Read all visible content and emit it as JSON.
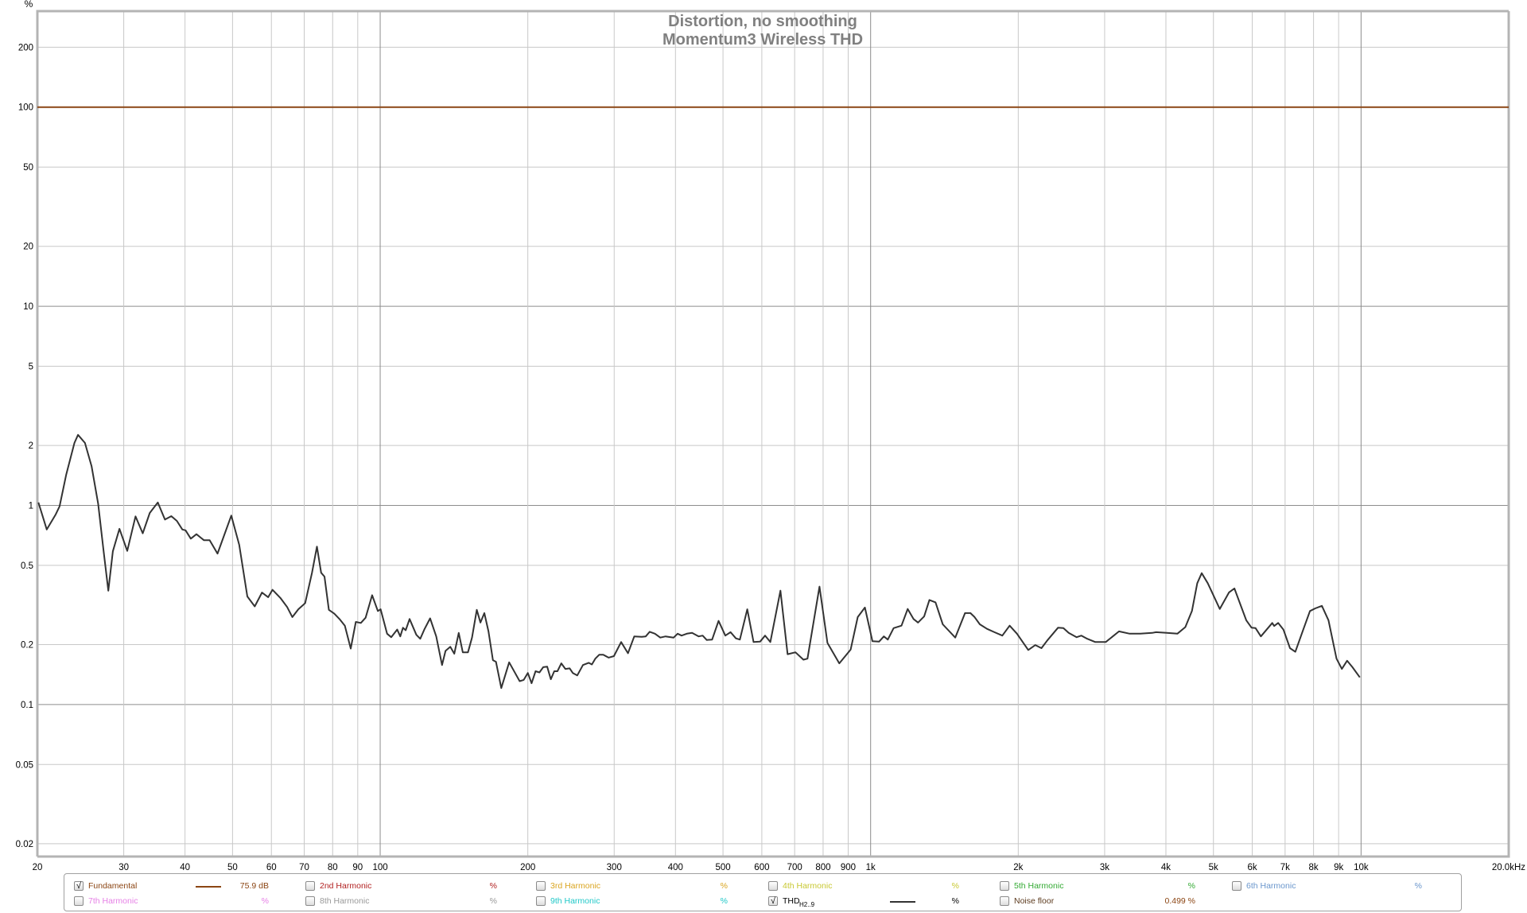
{
  "chart_data": {
    "type": "line",
    "title": "Distortion, no smoothing",
    "subtitle": "Momentum3 Wireless THD",
    "ylabel": "%",
    "xunit_label": "20.0kHz",
    "x_scale": "log",
    "y_scale": "log",
    "xlim": [
      20,
      20000
    ],
    "ylim": [
      0.0173,
      303
    ],
    "grid": true,
    "legend_placement": "bottom",
    "y_ticks": [
      {
        "v": 200,
        "label": "200"
      },
      {
        "v": 100,
        "label": "100"
      },
      {
        "v": 50,
        "label": "50"
      },
      {
        "v": 20,
        "label": "20"
      },
      {
        "v": 10,
        "label": "10"
      },
      {
        "v": 5,
        "label": "5"
      },
      {
        "v": 2,
        "label": "2"
      },
      {
        "v": 1,
        "label": "1"
      },
      {
        "v": 0.5,
        "label": "0.5"
      },
      {
        "v": 0.2,
        "label": "0.2"
      },
      {
        "v": 0.1,
        "label": "0.1"
      },
      {
        "v": 0.05,
        "label": "0.05"
      },
      {
        "v": 0.02,
        "label": "0.02"
      }
    ],
    "x_ticks": [
      {
        "v": 20,
        "label": "20"
      },
      {
        "v": 30,
        "label": "30"
      },
      {
        "v": 40,
        "label": "40"
      },
      {
        "v": 50,
        "label": "50"
      },
      {
        "v": 60,
        "label": "60"
      },
      {
        "v": 70,
        "label": "70"
      },
      {
        "v": 80,
        "label": "80"
      },
      {
        "v": 90,
        "label": "90"
      },
      {
        "v": 100,
        "label": "100"
      },
      {
        "v": 200,
        "label": "200"
      },
      {
        "v": 300,
        "label": "300"
      },
      {
        "v": 400,
        "label": "400"
      },
      {
        "v": 500,
        "label": "500"
      },
      {
        "v": 600,
        "label": "600"
      },
      {
        "v": 700,
        "label": "700"
      },
      {
        "v": 800,
        "label": "800"
      },
      {
        "v": 900,
        "label": "900"
      },
      {
        "v": 1000,
        "label": "1k"
      },
      {
        "v": 2000,
        "label": "2k"
      },
      {
        "v": 3000,
        "label": "3k"
      },
      {
        "v": 4000,
        "label": "4k"
      },
      {
        "v": 5000,
        "label": "5k"
      },
      {
        "v": 6000,
        "label": "6k"
      },
      {
        "v": 7000,
        "label": "7k"
      },
      {
        "v": 8000,
        "label": "8k"
      },
      {
        "v": 9000,
        "label": "9k"
      },
      {
        "v": 10000,
        "label": "10k"
      }
    ],
    "major_x": [
      100,
      1000,
      10000
    ],
    "major_y": [
      100,
      10,
      1,
      0.1
    ],
    "series": [
      {
        "name": "Fundamental",
        "color": "#8b4513",
        "points": [
          [
            20,
            100
          ],
          [
            20000,
            100
          ]
        ]
      },
      {
        "name": "THD H2..9",
        "color": "#333333",
        "points": [
          [
            20.1,
            1.035
          ],
          [
            20.9,
            0.757
          ],
          [
            21.8,
            0.902
          ],
          [
            22.2,
            0.989
          ],
          [
            22.9,
            1.43
          ],
          [
            23.8,
            2.06
          ],
          [
            24.2,
            2.26
          ],
          [
            25.0,
            2.06
          ],
          [
            25.8,
            1.57
          ],
          [
            26.6,
            1.02
          ],
          [
            27.3,
            0.588
          ],
          [
            27.9,
            0.373
          ],
          [
            28.5,
            0.588
          ],
          [
            29.4,
            0.763
          ],
          [
            30.5,
            0.591
          ],
          [
            31.7,
            0.881
          ],
          [
            32.8,
            0.724
          ],
          [
            33.9,
            0.916
          ],
          [
            35.2,
            1.035
          ],
          [
            36.4,
            0.849
          ],
          [
            37.5,
            0.883
          ],
          [
            38.5,
            0.836
          ],
          [
            39.5,
            0.757
          ],
          [
            40.1,
            0.75
          ],
          [
            41.1,
            0.681
          ],
          [
            42.2,
            0.717
          ],
          [
            43.7,
            0.669
          ],
          [
            44.9,
            0.669
          ],
          [
            46.6,
            0.573
          ],
          [
            49.7,
            0.889
          ],
          [
            51.6,
            0.634
          ],
          [
            53.6,
            0.349
          ],
          [
            55.5,
            0.311
          ],
          [
            57.4,
            0.365
          ],
          [
            59.1,
            0.346
          ],
          [
            60.3,
            0.377
          ],
          [
            62.6,
            0.343
          ],
          [
            64.6,
            0.309
          ],
          [
            66.2,
            0.275
          ],
          [
            68.1,
            0.301
          ],
          [
            70.3,
            0.323
          ],
          [
            72.6,
            0.459
          ],
          [
            74.3,
            0.621
          ],
          [
            75.8,
            0.459
          ],
          [
            77.0,
            0.439
          ],
          [
            78.6,
            0.299
          ],
          [
            80.6,
            0.286
          ],
          [
            82.6,
            0.269
          ],
          [
            84.7,
            0.249
          ],
          [
            87.1,
            0.191
          ],
          [
            89.2,
            0.26
          ],
          [
            91.3,
            0.257
          ],
          [
            93.4,
            0.273
          ],
          [
            96.3,
            0.354
          ],
          [
            98.9,
            0.295
          ],
          [
            100.2,
            0.301
          ],
          [
            103.3,
            0.227
          ],
          [
            105.3,
            0.218
          ],
          [
            108.3,
            0.238
          ],
          [
            109.9,
            0.22
          ],
          [
            111.3,
            0.243
          ],
          [
            112.7,
            0.236
          ],
          [
            114.8,
            0.269
          ],
          [
            118.5,
            0.224
          ],
          [
            120.7,
            0.214
          ],
          [
            123.0,
            0.238
          ],
          [
            126.4,
            0.271
          ],
          [
            130.1,
            0.22
          ],
          [
            133.7,
            0.158
          ],
          [
            135.9,
            0.186
          ],
          [
            139.0,
            0.195
          ],
          [
            141.6,
            0.18
          ],
          [
            144.6,
            0.229
          ],
          [
            147.4,
            0.183
          ],
          [
            151.0,
            0.183
          ],
          [
            153.9,
            0.217
          ],
          [
            157.4,
            0.299
          ],
          [
            160.1,
            0.258
          ],
          [
            163.1,
            0.288
          ],
          [
            166.3,
            0.233
          ],
          [
            169.8,
            0.167
          ],
          [
            172.2,
            0.164
          ],
          [
            176.6,
            0.121
          ],
          [
            183.2,
            0.163
          ],
          [
            192.5,
            0.131
          ],
          [
            196.2,
            0.133
          ],
          [
            200,
            0.144
          ],
          [
            203.6,
            0.128
          ],
          [
            207.4,
            0.147
          ],
          [
            211.2,
            0.145
          ],
          [
            215,
            0.154
          ],
          [
            219,
            0.155
          ],
          [
            222.8,
            0.134
          ],
          [
            226.4,
            0.147
          ],
          [
            229.8,
            0.147
          ],
          [
            234.1,
            0.161
          ],
          [
            238.6,
            0.151
          ],
          [
            243.4,
            0.152
          ],
          [
            247,
            0.144
          ],
          [
            252.2,
            0.14
          ],
          [
            259.1,
            0.158
          ],
          [
            266.2,
            0.162
          ],
          [
            270.2,
            0.159
          ],
          [
            274.5,
            0.17
          ],
          [
            279.7,
            0.178
          ],
          [
            285,
            0.178
          ],
          [
            292.2,
            0.172
          ],
          [
            299.6,
            0.175
          ],
          [
            309.9,
            0.206
          ],
          [
            320.1,
            0.181
          ],
          [
            329.7,
            0.22
          ],
          [
            341.4,
            0.219
          ],
          [
            347.9,
            0.22
          ],
          [
            354.4,
            0.232
          ],
          [
            363.3,
            0.227
          ],
          [
            372.5,
            0.217
          ],
          [
            381.9,
            0.22
          ],
          [
            396.6,
            0.217
          ],
          [
            404.1,
            0.227
          ],
          [
            411.6,
            0.222
          ],
          [
            421.9,
            0.227
          ],
          [
            432.5,
            0.229
          ],
          [
            446.1,
            0.22
          ],
          [
            454.5,
            0.222
          ],
          [
            463.2,
            0.211
          ],
          [
            475.2,
            0.212
          ],
          [
            489.8,
            0.263
          ],
          [
            505.5,
            0.222
          ],
          [
            518.1,
            0.231
          ],
          [
            531.2,
            0.215
          ],
          [
            541.2,
            0.212
          ],
          [
            560.3,
            0.301
          ],
          [
            577.2,
            0.206
          ],
          [
            595,
            0.207
          ],
          [
            609.3,
            0.222
          ],
          [
            624.5,
            0.206
          ],
          [
            654.7,
            0.373
          ],
          [
            677.1,
            0.179
          ],
          [
            702.8,
            0.183
          ],
          [
            729.5,
            0.168
          ],
          [
            743.4,
            0.17
          ],
          [
            786.5,
            0.391
          ],
          [
            816.5,
            0.204
          ],
          [
            863.1,
            0.161
          ],
          [
            910.5,
            0.189
          ],
          [
            941.4,
            0.275
          ],
          [
            973.6,
            0.307
          ],
          [
            1008.5,
            0.208
          ],
          [
            1040.3,
            0.207
          ],
          [
            1064,
            0.22
          ],
          [
            1084,
            0.212
          ],
          [
            1113.8,
            0.242
          ],
          [
            1156.1,
            0.249
          ],
          [
            1190,
            0.302
          ],
          [
            1223,
            0.269
          ],
          [
            1249.1,
            0.258
          ],
          [
            1285.6,
            0.277
          ],
          [
            1317.7,
            0.335
          ],
          [
            1356.2,
            0.326
          ],
          [
            1403,
            0.253
          ],
          [
            1488,
            0.217
          ],
          [
            1558,
            0.288
          ],
          [
            1598,
            0.288
          ],
          [
            1629,
            0.275
          ],
          [
            1670,
            0.253
          ],
          [
            1727,
            0.24
          ],
          [
            1788,
            0.231
          ],
          [
            1856,
            0.222
          ],
          [
            1921,
            0.249
          ],
          [
            1988,
            0.227
          ],
          [
            2096,
            0.188
          ],
          [
            2167,
            0.199
          ],
          [
            2230,
            0.192
          ],
          [
            2293,
            0.21
          ],
          [
            2410,
            0.243
          ],
          [
            2472,
            0.242
          ],
          [
            2534,
            0.229
          ],
          [
            2630,
            0.218
          ],
          [
            2690,
            0.222
          ],
          [
            2765,
            0.214
          ],
          [
            2871,
            0.206
          ],
          [
            3016,
            0.206
          ],
          [
            3210,
            0.233
          ],
          [
            3374,
            0.227
          ],
          [
            3546,
            0.227
          ],
          [
            3750,
            0.229
          ],
          [
            3820,
            0.231
          ],
          [
            4015,
            0.229
          ],
          [
            4221,
            0.227
          ],
          [
            4382,
            0.245
          ],
          [
            4520,
            0.295
          ],
          [
            4634,
            0.407
          ],
          [
            4733,
            0.457
          ],
          [
            4869,
            0.407
          ],
          [
            5151,
            0.302
          ],
          [
            5381,
            0.366
          ],
          [
            5517,
            0.383
          ],
          [
            5834,
            0.265
          ],
          [
            5980,
            0.243
          ],
          [
            6093,
            0.242
          ],
          [
            6247,
            0.22
          ],
          [
            6590,
            0.257
          ],
          [
            6649,
            0.248
          ],
          [
            6774,
            0.257
          ],
          [
            6943,
            0.238
          ],
          [
            7164,
            0.192
          ],
          [
            7345,
            0.184
          ],
          [
            7624,
            0.238
          ],
          [
            7867,
            0.295
          ],
          [
            8064,
            0.304
          ],
          [
            8320,
            0.313
          ],
          [
            8582,
            0.265
          ],
          [
            8910,
            0.17
          ],
          [
            9137,
            0.151
          ],
          [
            9365,
            0.166
          ],
          [
            9603,
            0.154
          ],
          [
            9942,
            0.137
          ]
        ]
      }
    ]
  },
  "legend": [
    {
      "label": "Fundamental",
      "checked": true,
      "color": "#8b4513",
      "swatch": true,
      "value": "75.9 dB"
    },
    {
      "label": "2nd Harmonic",
      "checked": false,
      "color": "#b22222",
      "value": "%"
    },
    {
      "label": "3rd Harmonic",
      "checked": false,
      "color": "#daa520",
      "value": "%"
    },
    {
      "label": "4th Harmonic",
      "checked": false,
      "color": "#c8c832",
      "value": "%"
    },
    {
      "label": "5th Harmonic",
      "checked": false,
      "color": "#33aa33",
      "value": "%"
    },
    {
      "label": "6th Harmonic",
      "checked": false,
      "color": "#6a96cc",
      "value": "%"
    },
    {
      "label": "7th Harmonic",
      "checked": false,
      "color": "#e680e6",
      "value": "%"
    },
    {
      "label": "8th Harmonic",
      "checked": false,
      "color": "#999999",
      "value": "%"
    },
    {
      "label": "9th Harmonic",
      "checked": false,
      "color": "#20c8c8",
      "value": "%"
    },
    {
      "label": "THD",
      "sub": "H2..9",
      "checked": true,
      "color": "#333333",
      "swatch": true,
      "value": "%"
    },
    {
      "label": "Noise floor",
      "checked": false,
      "color": "#5c3a1e",
      "value": "0.499 %"
    }
  ],
  "check_glyph": "√"
}
